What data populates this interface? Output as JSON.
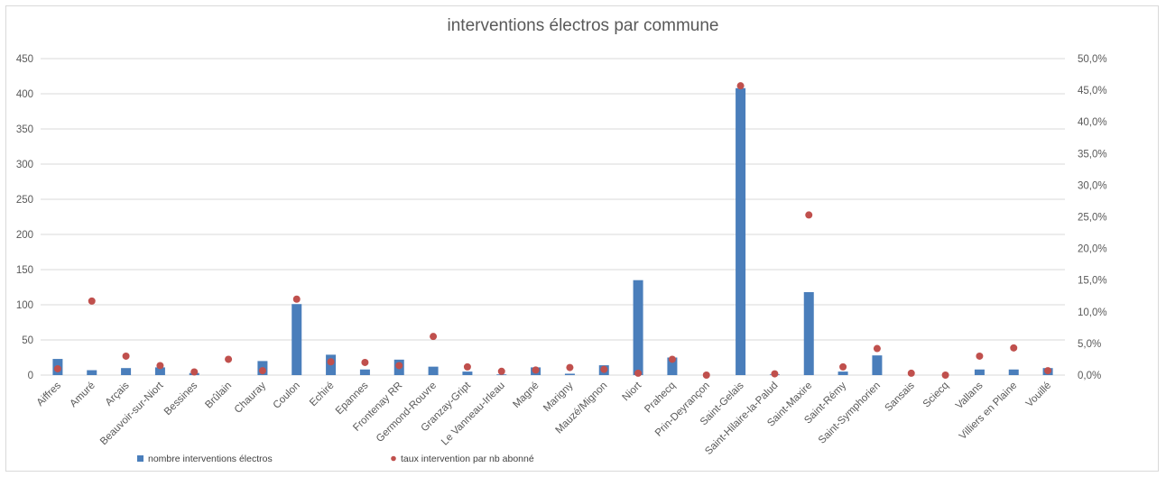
{
  "chart_data": {
    "type": "bar",
    "title": "interventions électros par commune",
    "categories": [
      "Aiffres",
      "Amuré",
      "Arçais",
      "Beauvoir-sur-Niort",
      "Bessines",
      "Brûlain",
      "Chauray",
      "Coulon",
      "Echiré",
      "Epannes",
      "Frontenay RR",
      "Germond-Rouvre",
      "Granzay-Gript",
      "Le Vanneau-Irleau",
      "Magné",
      "Marigny",
      "Mauzé/Mignon",
      "Niort",
      "Prahecq",
      "Prin-Deyrançon",
      "Saint-Gelais",
      "Saint-Hilaire-la-Palud",
      "Saint-Maxire",
      "Saint-Rémy",
      "Saint-Symphorien",
      "Sansais",
      "Sciecq",
      "Vallans",
      "Villiers en Plaine",
      "Vouillé"
    ],
    "series": [
      {
        "name": "nombre interventions électros",
        "type": "bar",
        "axis": "left",
        "color": "#4a7ebb",
        "values": [
          23,
          7,
          10,
          11,
          3,
          0,
          20,
          101,
          29,
          8,
          22,
          12,
          5,
          1,
          11,
          2,
          14,
          135,
          25,
          0,
          408,
          1,
          118,
          5,
          28,
          0,
          0,
          8,
          8,
          10
        ]
      },
      {
        "name": "taux intervention par nb abonné",
        "type": "scatter",
        "axis": "right",
        "color": "#c0504d",
        "values": [
          0.01,
          0.117,
          0.03,
          0.015,
          0.005,
          0.025,
          0.007,
          0.12,
          0.021,
          0.02,
          0.015,
          0.061,
          0.013,
          0.006,
          0.008,
          0.012,
          0.009,
          0.003,
          0.025,
          0.0,
          0.457,
          0.002,
          0.253,
          0.013,
          0.042,
          0.003,
          0.0,
          0.03,
          0.043,
          0.007
        ]
      }
    ],
    "y_left": {
      "min": 0,
      "max": 450,
      "ticks": [
        "0",
        "50",
        "100",
        "150",
        "200",
        "250",
        "300",
        "350",
        "400",
        "450"
      ]
    },
    "y_right": {
      "min": 0,
      "max": 0.5,
      "ticks": [
        "0,0%",
        "5,0%",
        "10,0%",
        "15,0%",
        "20,0%",
        "25,0%",
        "30,0%",
        "35,0%",
        "40,0%",
        "45,0%",
        "50,0%"
      ]
    },
    "grid": true,
    "legend_position": "bottom"
  }
}
